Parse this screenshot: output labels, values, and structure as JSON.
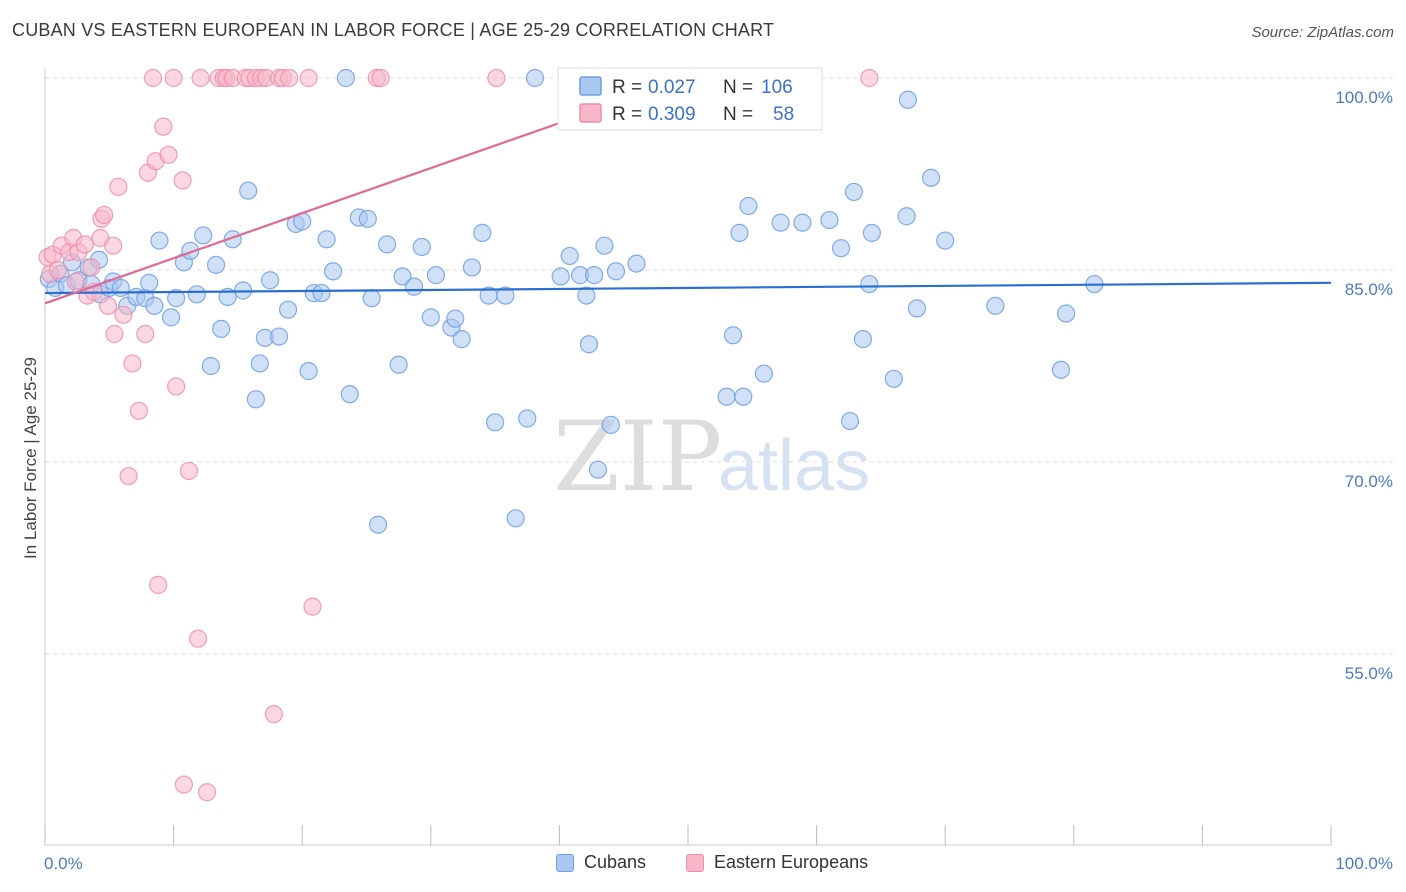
{
  "header": {
    "title": "CUBAN VS EASTERN EUROPEAN IN LABOR FORCE | AGE 25-29 CORRELATION CHART",
    "source": "Source: ZipAtlas.com"
  },
  "watermark": {
    "zip": "ZIP",
    "atlas": "atlas"
  },
  "legend_box": {
    "rows": [
      {
        "r_label": "R =",
        "r_value": "0.027",
        "n_label": "N =",
        "n_value": "106"
      },
      {
        "r_label": "R =",
        "r_value": "0.309",
        "n_label": "N =",
        "n_value": "58"
      }
    ]
  },
  "bottom_legend": {
    "items": [
      "Cubans",
      "Eastern Europeans"
    ]
  },
  "colors": {
    "cubans_fill": "#a9c7f0",
    "cubans_stroke": "#6e9fe0",
    "cubans_line": "#2a6fd0",
    "eastern_fill": "#f6b7c9",
    "eastern_stroke": "#ee8eac",
    "eastern_line": "#e06a93",
    "tick_label": "#4a7cc4"
  },
  "chart_data": {
    "type": "scatter",
    "title": "CUBAN VS EASTERN EUROPEAN IN LABOR FORCE | AGE 25-29 CORRELATION CHART",
    "xlabel": "",
    "ylabel": "In Labor Force | Age 25-29",
    "xlim": [
      0,
      100
    ],
    "ylim": [
      43,
      101
    ],
    "x_tick_labels": [
      "0.0%",
      "100.0%"
    ],
    "y_ticks": [
      100,
      85,
      70,
      55
    ],
    "y_tick_labels": [
      "100.0%",
      "85.0%",
      "70.0%",
      "55.0%"
    ],
    "grid": true,
    "legend_position": "top-center",
    "series": [
      {
        "name": "Cubans",
        "r": 0.027,
        "n": 106,
        "trend": [
          [
            0,
            83.2
          ],
          [
            100,
            84.0
          ]
        ],
        "points": [
          [
            0.3,
            84.3
          ],
          [
            0.8,
            83.6
          ],
          [
            1.2,
            84.7
          ],
          [
            1.7,
            83.8
          ],
          [
            2.1,
            85.6
          ],
          [
            2.6,
            84.2
          ],
          [
            3.4,
            85.2
          ],
          [
            3.6,
            83.9
          ],
          [
            4.2,
            85.8
          ],
          [
            4.3,
            83.1
          ],
          [
            5.0,
            83.6
          ],
          [
            5.3,
            84.1
          ],
          [
            5.9,
            83.6
          ],
          [
            6.4,
            82.2
          ],
          [
            7.1,
            82.9
          ],
          [
            7.8,
            82.8
          ],
          [
            8.1,
            84.0
          ],
          [
            8.5,
            82.2
          ],
          [
            8.9,
            87.3
          ],
          [
            9.8,
            81.3
          ],
          [
            10.2,
            82.8
          ],
          [
            10.8,
            85.6
          ],
          [
            11.3,
            86.5
          ],
          [
            11.8,
            83.1
          ],
          [
            12.3,
            87.7
          ],
          [
            12.9,
            77.5
          ],
          [
            13.3,
            85.4
          ],
          [
            13.7,
            80.4
          ],
          [
            14.2,
            82.9
          ],
          [
            14.6,
            87.4
          ],
          [
            15.4,
            83.4
          ],
          [
            15.8,
            91.2
          ],
          [
            16.4,
            74.9
          ],
          [
            16.7,
            77.7
          ],
          [
            17.1,
            79.7
          ],
          [
            17.5,
            84.2
          ],
          [
            18.2,
            79.8
          ],
          [
            18.9,
            81.9
          ],
          [
            19.5,
            88.6
          ],
          [
            20.0,
            88.8
          ],
          [
            20.5,
            77.1
          ],
          [
            20.9,
            83.2
          ],
          [
            21.5,
            83.2
          ],
          [
            21.9,
            87.4
          ],
          [
            22.4,
            84.9
          ],
          [
            23.4,
            100.0
          ],
          [
            23.7,
            75.3
          ],
          [
            24.4,
            89.1
          ],
          [
            25.1,
            89.0
          ],
          [
            25.4,
            82.8
          ],
          [
            25.9,
            65.1
          ],
          [
            26.6,
            87.0
          ],
          [
            27.5,
            77.6
          ],
          [
            27.8,
            84.5
          ],
          [
            28.7,
            83.7
          ],
          [
            29.3,
            86.8
          ],
          [
            30.0,
            81.3
          ],
          [
            30.4,
            84.6
          ],
          [
            31.6,
            80.5
          ],
          [
            31.9,
            81.2
          ],
          [
            32.4,
            79.6
          ],
          [
            33.2,
            85.2
          ],
          [
            34.0,
            87.9
          ],
          [
            34.5,
            83.0
          ],
          [
            35.0,
            73.1
          ],
          [
            35.8,
            83.0
          ],
          [
            36.6,
            65.6
          ],
          [
            37.5,
            73.4
          ],
          [
            38.1,
            100.0
          ],
          [
            40.1,
            84.5
          ],
          [
            40.8,
            86.1
          ],
          [
            41.6,
            84.6
          ],
          [
            42.1,
            83.0
          ],
          [
            42.3,
            79.2
          ],
          [
            42.7,
            84.6
          ],
          [
            43.0,
            69.4
          ],
          [
            43.5,
            86.9
          ],
          [
            44.0,
            72.9
          ],
          [
            44.4,
            84.9
          ],
          [
            46.0,
            85.5
          ],
          [
            47.3,
            100.0
          ],
          [
            53.0,
            75.1
          ],
          [
            53.5,
            79.9
          ],
          [
            54.0,
            87.9
          ],
          [
            54.3,
            75.1
          ],
          [
            54.7,
            90.0
          ],
          [
            55.9,
            76.9
          ],
          [
            57.2,
            88.7
          ],
          [
            58.9,
            88.7
          ],
          [
            61.0,
            88.9
          ],
          [
            61.9,
            86.7
          ],
          [
            62.6,
            73.2
          ],
          [
            62.9,
            91.1
          ],
          [
            63.6,
            79.6
          ],
          [
            64.1,
            83.9
          ],
          [
            64.3,
            87.9
          ],
          [
            66.0,
            76.5
          ],
          [
            67.0,
            89.2
          ],
          [
            67.1,
            98.3
          ],
          [
            67.8,
            82.0
          ],
          [
            68.9,
            92.2
          ],
          [
            70.0,
            87.3
          ],
          [
            73.9,
            82.2
          ],
          [
            79.0,
            77.2
          ],
          [
            79.4,
            81.6
          ],
          [
            81.6,
            83.9
          ]
        ]
      },
      {
        "name": "Eastern Europeans",
        "r": 0.309,
        "n": 58,
        "trend": [
          [
            0,
            82.4
          ],
          [
            50,
            100.0
          ]
        ],
        "points": [
          [
            0.2,
            86.0
          ],
          [
            0.4,
            84.7
          ],
          [
            0.6,
            86.2
          ],
          [
            1.0,
            85.0
          ],
          [
            1.3,
            86.9
          ],
          [
            1.9,
            86.4
          ],
          [
            2.2,
            87.5
          ],
          [
            2.4,
            84.1
          ],
          [
            2.6,
            86.4
          ],
          [
            3.1,
            87.0
          ],
          [
            3.3,
            83.0
          ],
          [
            3.6,
            85.2
          ],
          [
            3.8,
            83.3
          ],
          [
            4.3,
            87.5
          ],
          [
            4.4,
            89.0
          ],
          [
            4.6,
            89.3
          ],
          [
            4.9,
            82.2
          ],
          [
            5.3,
            86.9
          ],
          [
            5.4,
            80.0
          ],
          [
            5.7,
            91.5
          ],
          [
            6.1,
            81.5
          ],
          [
            6.5,
            68.9
          ],
          [
            6.8,
            77.7
          ],
          [
            7.3,
            74.0
          ],
          [
            7.8,
            80.0
          ],
          [
            8.0,
            92.6
          ],
          [
            8.4,
            100.0
          ],
          [
            8.6,
            93.5
          ],
          [
            8.8,
            60.4
          ],
          [
            9.2,
            96.2
          ],
          [
            9.6,
            94.0
          ],
          [
            10.0,
            100.0
          ],
          [
            10.2,
            75.9
          ],
          [
            10.7,
            92.0
          ],
          [
            10.8,
            44.8
          ],
          [
            11.2,
            69.3
          ],
          [
            11.9,
            56.2
          ],
          [
            12.1,
            100.0
          ],
          [
            12.6,
            44.2
          ],
          [
            13.5,
            100.0
          ],
          [
            13.9,
            100.0
          ],
          [
            14.1,
            100.0
          ],
          [
            14.6,
            100.0
          ],
          [
            15.6,
            100.0
          ],
          [
            15.9,
            100.0
          ],
          [
            16.4,
            100.0
          ],
          [
            16.8,
            100.0
          ],
          [
            17.2,
            100.0
          ],
          [
            17.8,
            50.3
          ],
          [
            18.2,
            100.0
          ],
          [
            18.5,
            100.0
          ],
          [
            19.0,
            100.0
          ],
          [
            20.5,
            100.0
          ],
          [
            20.8,
            58.7
          ],
          [
            25.8,
            100.0
          ],
          [
            26.1,
            100.0
          ],
          [
            35.1,
            100.0
          ],
          [
            64.1,
            100.0
          ]
        ]
      }
    ]
  }
}
